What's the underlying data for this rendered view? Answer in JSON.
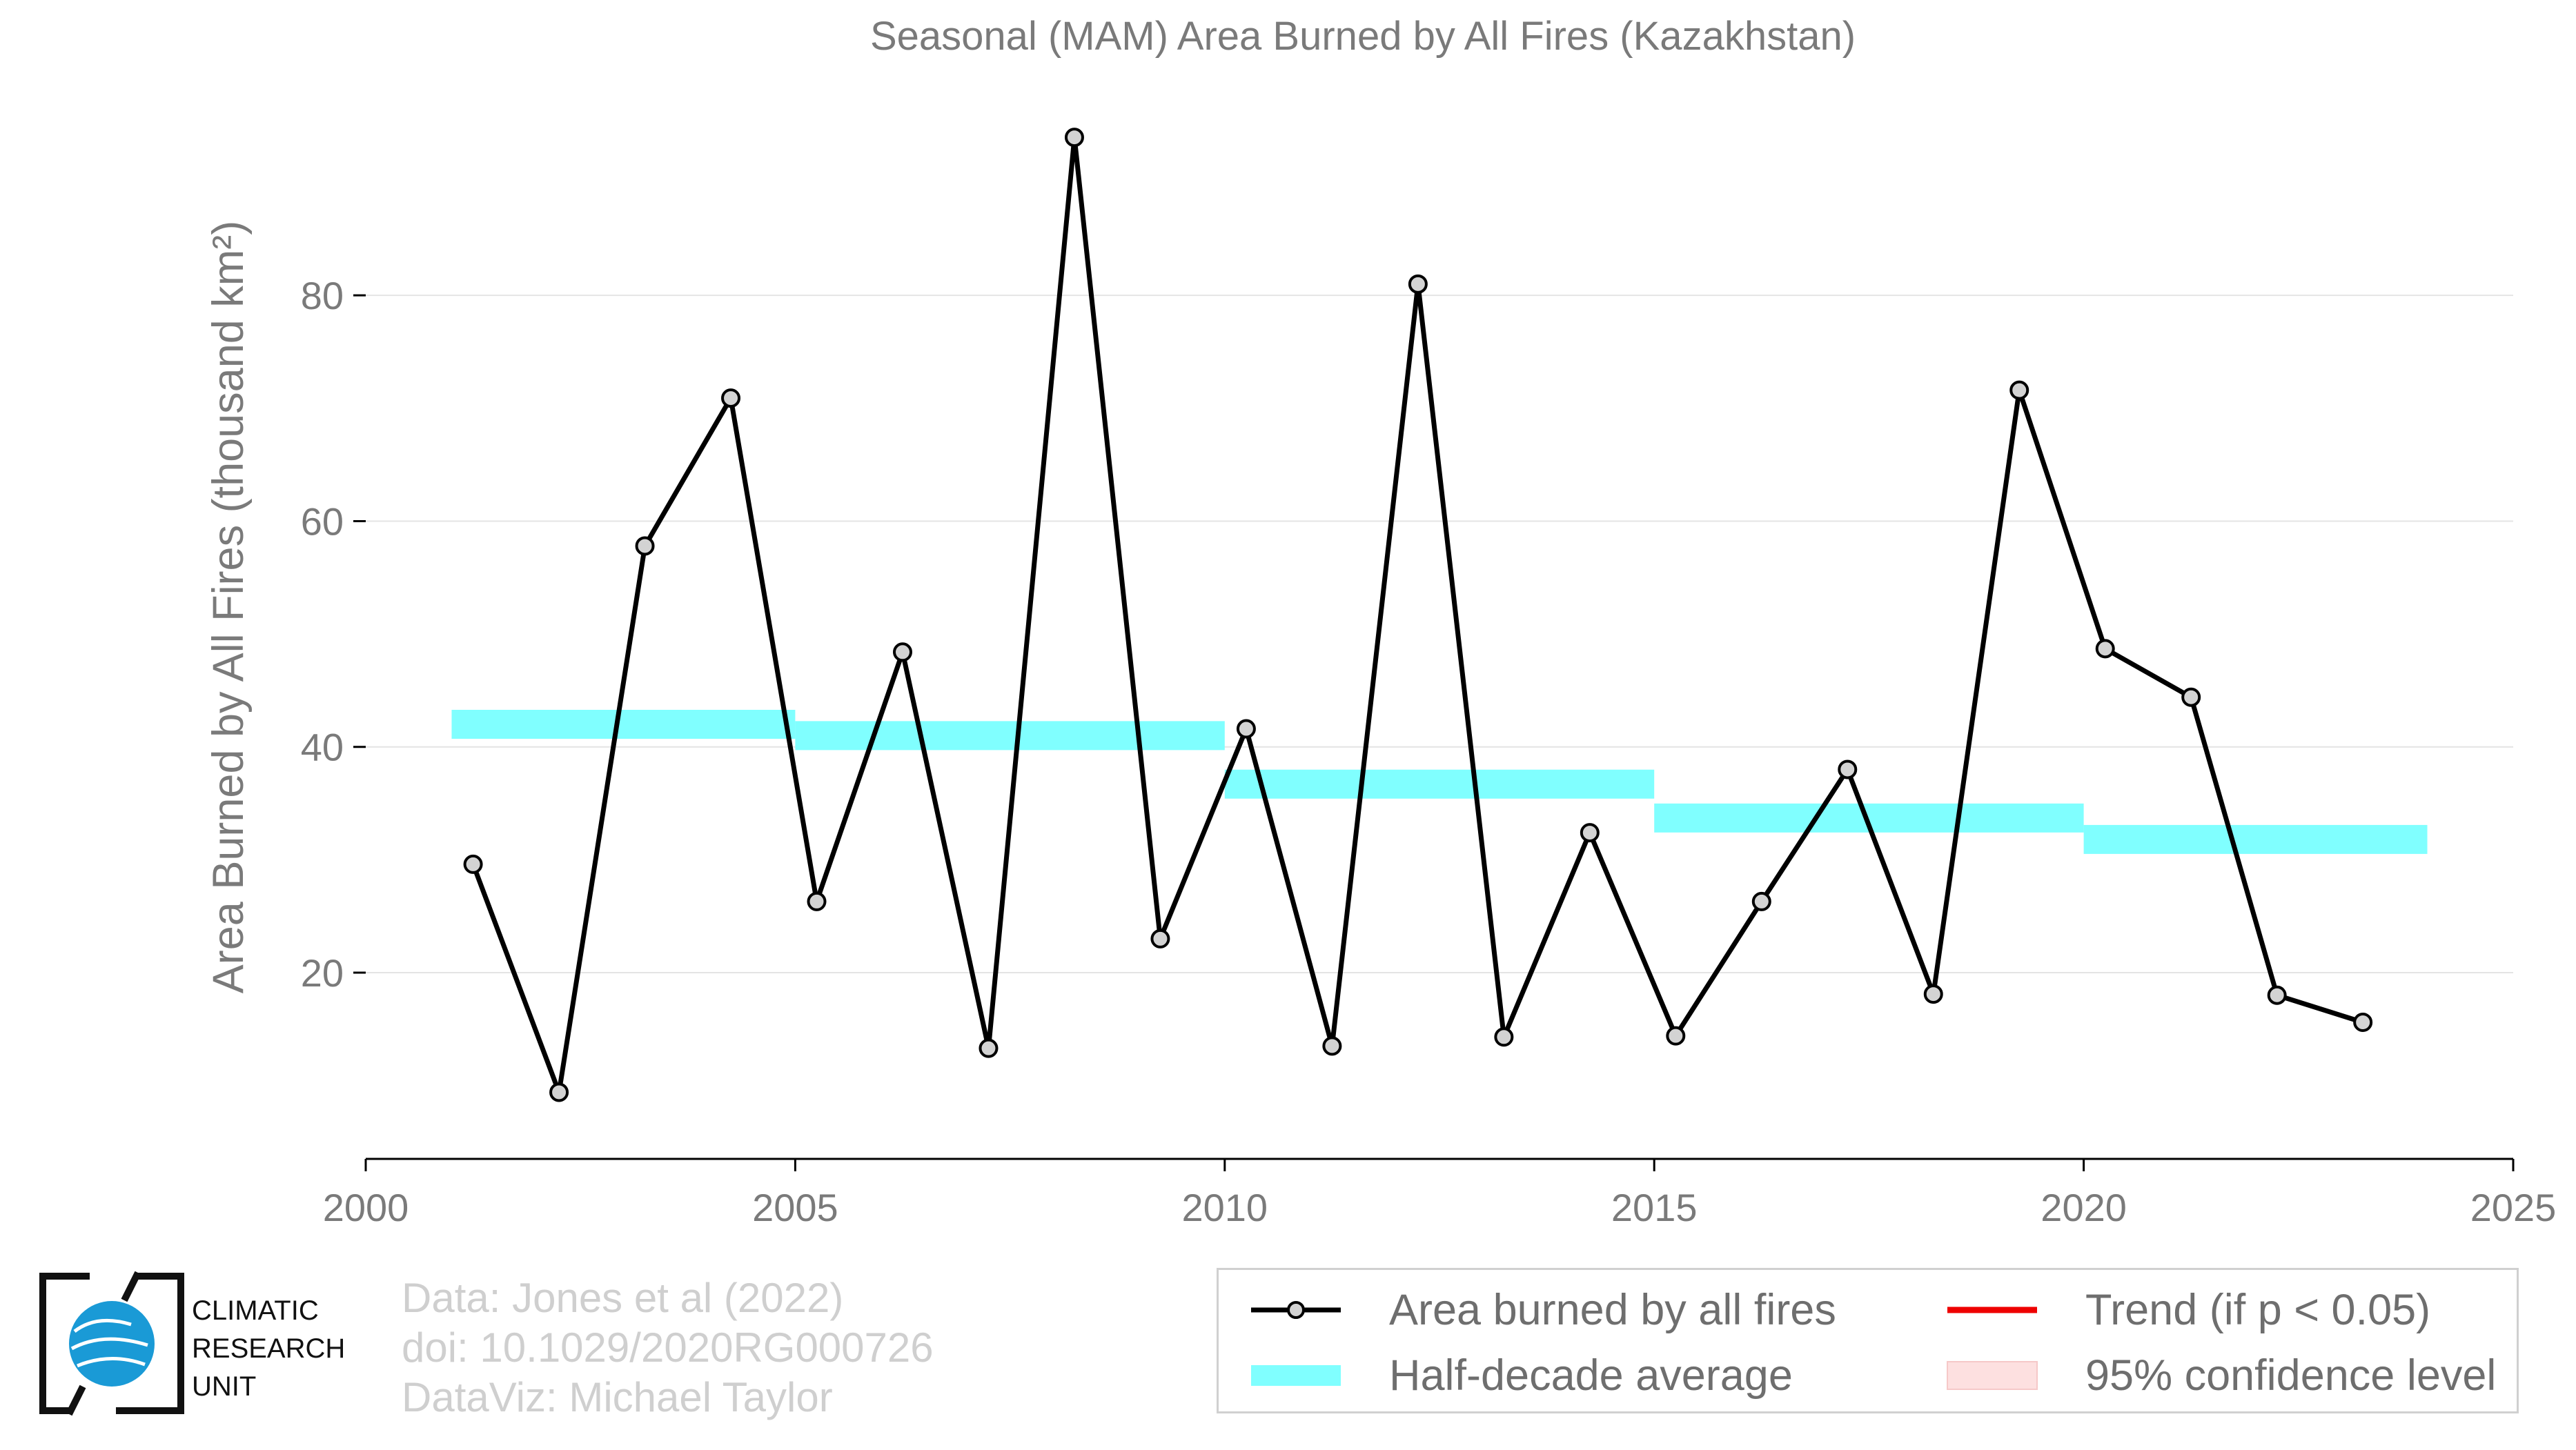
{
  "chart_data": {
    "type": "line",
    "title": "Seasonal (MAM) Area Burned by All Fires (Kazakhstan)",
    "xlabel": "",
    "ylabel": "Area Burned by All Fires (thousand km²)",
    "xlim": [
      2000,
      2025
    ],
    "ylim": [
      3.5,
      97
    ],
    "x_ticks": [
      2000,
      2005,
      2010,
      2015,
      2020,
      2025
    ],
    "y_ticks": [
      20,
      40,
      60,
      80
    ],
    "grid": "horizontal",
    "series": [
      {
        "name": "Area burned by all fires",
        "color": "#000000",
        "marker_fill": "#d3d3d3",
        "x": [
          2001.25,
          2002.25,
          2003.25,
          2004.25,
          2005.25,
          2006.25,
          2007.25,
          2008.25,
          2009.25,
          2010.25,
          2011.25,
          2012.25,
          2013.25,
          2014.25,
          2015.25,
          2016.25,
          2017.25,
          2018.25,
          2019.25,
          2020.25,
          2021.25,
          2022.25,
          2023.25
        ],
        "values": [
          29.6,
          9.4,
          57.8,
          70.9,
          26.3,
          48.4,
          13.3,
          94.0,
          23.0,
          41.6,
          13.5,
          81.0,
          14.3,
          32.4,
          14.4,
          26.3,
          38.0,
          18.1,
          71.6,
          48.7,
          44.4,
          18.0,
          15.6
        ]
      }
    ],
    "half_decade_average": {
      "name": "Half-decade average",
      "color": "#80ffff",
      "segments": [
        {
          "x0": 2001,
          "x1": 2005,
          "value": 42.0
        },
        {
          "x0": 2005,
          "x1": 2010,
          "value": 41.0
        },
        {
          "x0": 2010,
          "x1": 2015,
          "value": 36.7
        },
        {
          "x0": 2015,
          "x1": 2020,
          "value": 33.7
        },
        {
          "x0": 2020,
          "x1": 2024,
          "value": 31.8
        }
      ]
    },
    "legend": {
      "placement": "bottom-right",
      "items": [
        {
          "label": "Area burned by all fires",
          "kind": "line-marker",
          "color": "#000000"
        },
        {
          "label": "Trend (if p < 0.05)",
          "kind": "line",
          "color": "#ee0000"
        },
        {
          "label": "Half-decade average",
          "kind": "band",
          "color": "#80ffff"
        },
        {
          "label": "95% confidence level",
          "kind": "band",
          "color": "#fde0e0"
        }
      ]
    }
  },
  "credits": {
    "data": "Data: Jones et al (2022)",
    "doi": "doi: 10.1029/2020RG000726",
    "dataviz": "DataViz: Michael Taylor"
  },
  "logo": {
    "line1": "CLIMATIC",
    "line2": "RESEARCH",
    "line3": "UNIT"
  }
}
